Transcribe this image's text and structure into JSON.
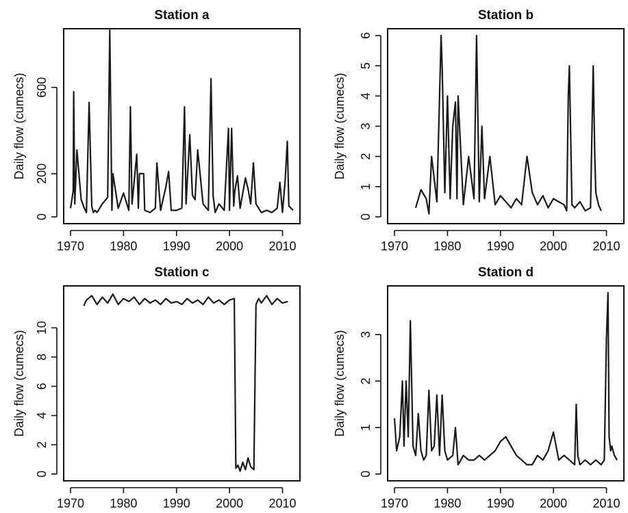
{
  "chart_data": [
    {
      "type": "line",
      "title": "Station a",
      "ylabel": "Daily flow (cumecs)",
      "xlim": [
        1970,
        2012
      ],
      "ylim": [
        0,
        840
      ],
      "xticks": [
        1970,
        1980,
        1990,
        2000,
        2010
      ],
      "yticks": [
        0,
        200,
        600
      ],
      "series": [
        {
          "x": [
            1970.0,
            1970.5,
            1970.6,
            1970.8,
            1971.2,
            1972.0,
            1972.6,
            1973.0,
            1973.5,
            1974.0,
            1974.3,
            1974.6,
            1975.0,
            1976.0,
            1977.0,
            1977.4,
            1977.8,
            1978.0,
            1979.0,
            1980.0,
            1981.0,
            1981.3,
            1981.6,
            1982.5,
            1982.8,
            1983.0,
            1983.3,
            1983.8,
            1984.0,
            1985.0,
            1986.0,
            1986.3,
            1987.0,
            1988.0,
            1988.5,
            1989.0,
            1990.0,
            1991.0,
            1991.5,
            1991.8,
            1992.5,
            1993.0,
            1993.5,
            1994.0,
            1995.0,
            1996.0,
            1996.5,
            1996.9,
            1997.3,
            1998.0,
            1999.0,
            1999.8,
            2000.0,
            2000.4,
            2000.8,
            2001.0,
            2001.5,
            2002.0,
            2003.0,
            2003.5,
            2004.0,
            2004.5,
            2005.0,
            2006.0,
            2007.0,
            2008.0,
            2009.0,
            2009.5,
            2010.0,
            2010.5,
            2010.9,
            2011.2,
            2012.0
          ],
          "y": [
            40,
            120,
            580,
            60,
            310,
            80,
            40,
            20,
            530,
            50,
            20,
            30,
            20,
            60,
            90,
            950,
            30,
            200,
            40,
            110,
            30,
            510,
            60,
            290,
            40,
            200,
            200,
            200,
            30,
            20,
            40,
            250,
            30,
            140,
            210,
            30,
            30,
            40,
            510,
            60,
            380,
            100,
            80,
            310,
            60,
            30,
            640,
            100,
            20,
            60,
            30,
            410,
            30,
            410,
            50,
            120,
            190,
            40,
            180,
            130,
            60,
            250,
            60,
            20,
            30,
            20,
            40,
            160,
            20,
            170,
            350,
            50,
            30
          ]
        }
      ]
    },
    {
      "type": "line",
      "title": "Station b",
      "ylabel": "Daily flow (cumecs)",
      "xlim": [
        1970,
        2012
      ],
      "ylim": [
        0,
        6
      ],
      "xticks": [
        1970,
        1980,
        1990,
        2000,
        2010
      ],
      "yticks": [
        0,
        1,
        2,
        3,
        4,
        5,
        6
      ],
      "series": [
        {
          "x": [
            1974.0,
            1975.0,
            1976.0,
            1976.5,
            1977.0,
            1978.0,
            1978.8,
            1979.0,
            1979.5,
            1980.0,
            1980.5,
            1981.0,
            1981.5,
            1981.8,
            1982.0,
            1983.0,
            1984.0,
            1985.0,
            1985.5,
            1986.0,
            1986.5,
            1987.0,
            1988.0,
            1989.0,
            1990.0,
            1991.0,
            1992.0,
            1993.0,
            1994.0,
            1995.0,
            1996.0,
            1997.0,
            1998.0,
            1999.0,
            2000.0,
            2001.0,
            2002.0,
            2002.5,
            2002.8,
            2003.0,
            2003.5,
            2004.0,
            2005.0,
            2006.0,
            2007.0,
            2007.5,
            2007.8,
            2008.0,
            2008.5,
            2009.0
          ],
          "y": [
            0.3,
            0.9,
            0.6,
            0.1,
            2.0,
            0.5,
            6.0,
            5.0,
            0.8,
            4.0,
            0.6,
            3.0,
            3.8,
            0.6,
            4.0,
            0.4,
            2.0,
            0.6,
            6.0,
            0.5,
            3.0,
            0.6,
            2.0,
            0.4,
            0.7,
            0.5,
            0.3,
            0.6,
            0.4,
            2.0,
            0.8,
            0.4,
            0.7,
            0.3,
            0.6,
            0.5,
            0.4,
            0.2,
            4.0,
            5.0,
            0.4,
            0.3,
            0.5,
            0.2,
            0.3,
            5.0,
            2.0,
            0.8,
            0.4,
            0.2
          ]
        }
      ]
    },
    {
      "type": "line",
      "title": "Station c",
      "ylabel": "Daily flow (cumecs)",
      "xlim": [
        1970,
        2012
      ],
      "ylim": [
        0,
        12.4
      ],
      "xticks": [
        1970,
        1980,
        1990,
        2000,
        2010
      ],
      "yticks": [
        0,
        2,
        4,
        6,
        8,
        10
      ],
      "series": [
        {
          "x": [
            1972.5,
            1973.0,
            1974.0,
            1975.0,
            1976.0,
            1977.0,
            1978.0,
            1979.0,
            1980.0,
            1981.0,
            1982.0,
            1983.0,
            1984.0,
            1985.0,
            1986.0,
            1987.0,
            1988.0,
            1989.0,
            1990.0,
            1991.0,
            1992.0,
            1993.0,
            1994.0,
            1995.0,
            1996.0,
            1997.0,
            1998.0,
            1999.0,
            2000.0,
            2000.9,
            2001.2,
            2001.6,
            2002.0,
            2002.5,
            2003.0,
            2003.5,
            2004.0,
            2004.6,
            2005.0,
            2005.5,
            2006.0,
            2007.0,
            2008.0,
            2009.0,
            2010.0,
            2011.0
          ],
          "y": [
            11.5,
            11.9,
            12.2,
            11.6,
            12.1,
            11.7,
            12.3,
            11.6,
            12.0,
            11.8,
            12.1,
            11.6,
            12.0,
            11.7,
            11.9,
            11.6,
            12.0,
            11.7,
            11.8,
            11.6,
            12.0,
            11.7,
            11.9,
            11.6,
            12.1,
            11.7,
            11.9,
            11.6,
            11.9,
            12.0,
            0.4,
            0.6,
            0.2,
            0.8,
            0.3,
            1.1,
            0.5,
            0.3,
            11.6,
            12.0,
            11.7,
            12.2,
            11.6,
            12.0,
            11.7,
            11.8
          ]
        }
      ]
    },
    {
      "type": "line",
      "title": "Station d",
      "ylabel": "Daily flow (cumecs)",
      "xlim": [
        1970,
        2012
      ],
      "ylim": [
        0,
        3.9
      ],
      "xticks": [
        1970,
        1980,
        1990,
        2000,
        2010
      ],
      "yticks": [
        0,
        1,
        2,
        3
      ],
      "series": [
        {
          "x": [
            1970.0,
            1970.4,
            1971.0,
            1971.5,
            1971.8,
            1972.2,
            1972.6,
            1973.0,
            1973.5,
            1974.0,
            1974.5,
            1975.0,
            1975.5,
            1976.0,
            1976.5,
            1977.0,
            1977.5,
            1978.0,
            1978.5,
            1979.0,
            1979.5,
            1980.0,
            1981.0,
            1981.5,
            1982.0,
            1983.0,
            1984.0,
            1985.0,
            1986.0,
            1987.0,
            1988.0,
            1989.0,
            1990.0,
            1991.0,
            1992.0,
            1993.0,
            1994.0,
            1995.0,
            1996.0,
            1997.0,
            1998.0,
            1999.0,
            2000.0,
            2001.0,
            2002.0,
            2003.0,
            2004.0,
            2004.3,
            2004.6,
            2005.0,
            2006.0,
            2007.0,
            2008.0,
            2009.0,
            2009.6,
            2010.0,
            2010.3,
            2010.5,
            2010.8,
            2011.0,
            2011.5,
            2012.0
          ],
          "y": [
            1.2,
            0.5,
            0.8,
            2.0,
            0.6,
            2.0,
            0.8,
            3.3,
            0.6,
            0.4,
            1.3,
            0.5,
            0.3,
            0.4,
            1.8,
            0.5,
            0.6,
            1.7,
            0.4,
            1.7,
            0.5,
            0.3,
            0.4,
            1.0,
            0.2,
            0.4,
            0.3,
            0.3,
            0.4,
            0.3,
            0.4,
            0.5,
            0.7,
            0.8,
            0.6,
            0.4,
            0.3,
            0.2,
            0.2,
            0.4,
            0.3,
            0.5,
            0.9,
            0.3,
            0.4,
            0.3,
            0.2,
            1.5,
            0.4,
            0.2,
            0.3,
            0.2,
            0.3,
            0.2,
            0.3,
            2.9,
            3.9,
            0.8,
            0.5,
            0.6,
            0.4,
            0.3
          ]
        }
      ]
    }
  ]
}
